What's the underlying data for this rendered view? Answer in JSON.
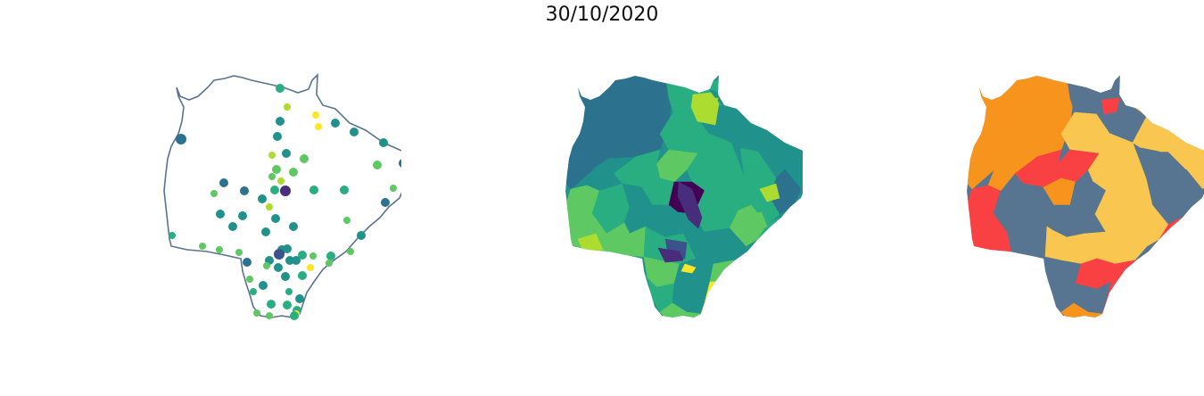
{
  "title": "30/10/2020",
  "colors": {
    "outline": "#5a7391",
    "viridis": [
      "#440154",
      "#472d7b",
      "#3b528b",
      "#2c728e",
      "#21918c",
      "#28ae80",
      "#5ec962",
      "#addc30",
      "#fde725"
    ],
    "categorical": {
      "orange": "#f7941d",
      "red": "#f94144",
      "slate": "#577590",
      "yellow": "#f9c74f"
    }
  },
  "panels": [
    {
      "kind": "points-map",
      "name": "map-points"
    },
    {
      "kind": "choropleth-continuous",
      "name": "map-choropleth-viridis"
    },
    {
      "kind": "choropleth-categorical",
      "name": "map-choropleth-categorical"
    }
  ]
}
